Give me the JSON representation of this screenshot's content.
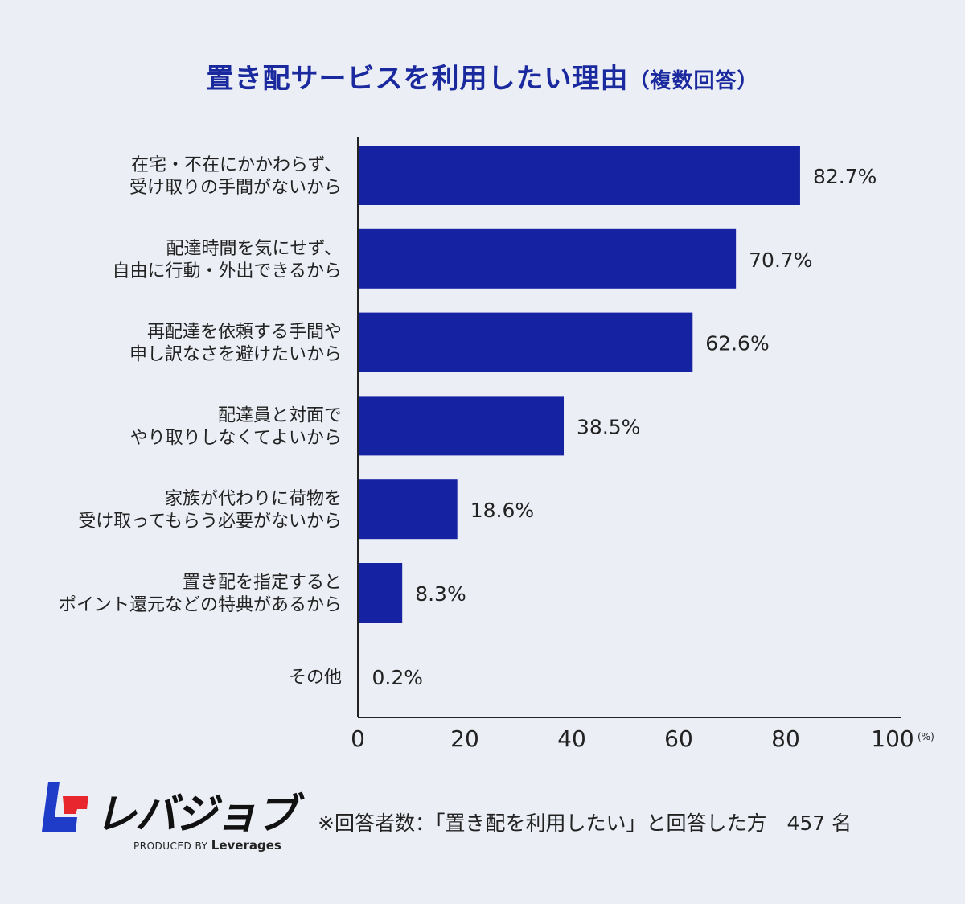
{
  "title": {
    "main": "置き配サービスを利用したい理由",
    "sub": "（複数回答）"
  },
  "chart_data": {
    "type": "bar",
    "orientation": "horizontal",
    "categories": [
      [
        "在宅・不在にかかわらず、",
        "受け取りの手間がないから"
      ],
      [
        "配達時間を気にせず、",
        "自由に行動・外出できるから"
      ],
      [
        "再配達を依頼する手間や",
        "申し訳なさを避けたいから"
      ],
      [
        "配達員と対面で",
        "やり取りしなくてよいから"
      ],
      [
        "家族が代わりに荷物を",
        "受け取ってもらう必要がないから"
      ],
      [
        "置き配を指定すると",
        "ポイント還元などの特典があるから"
      ],
      [
        "その他"
      ]
    ],
    "values": [
      82.7,
      70.7,
      62.6,
      38.5,
      18.6,
      8.3,
      0.2
    ],
    "value_labels": [
      "82.7%",
      "70.7%",
      "62.6%",
      "38.5%",
      "18.6%",
      "8.3%",
      "0.2%"
    ],
    "xlim": [
      0,
      100
    ],
    "xticks": [
      0,
      20,
      40,
      60,
      80,
      100
    ],
    "xunit": "(%)",
    "bar_color": "#1523a3",
    "grid": false
  },
  "footer": {
    "logo_text": "レバジョブ",
    "produced_by": "PRODUCED BY",
    "brand": "Leverages",
    "note": "※回答者数：「置き配を利用したい」と回答した方　457 名"
  },
  "colors": {
    "background": "#eceef5",
    "title": "#1a2a9e",
    "logo_blue": "#1e3cc8",
    "logo_red": "#e8262d"
  }
}
